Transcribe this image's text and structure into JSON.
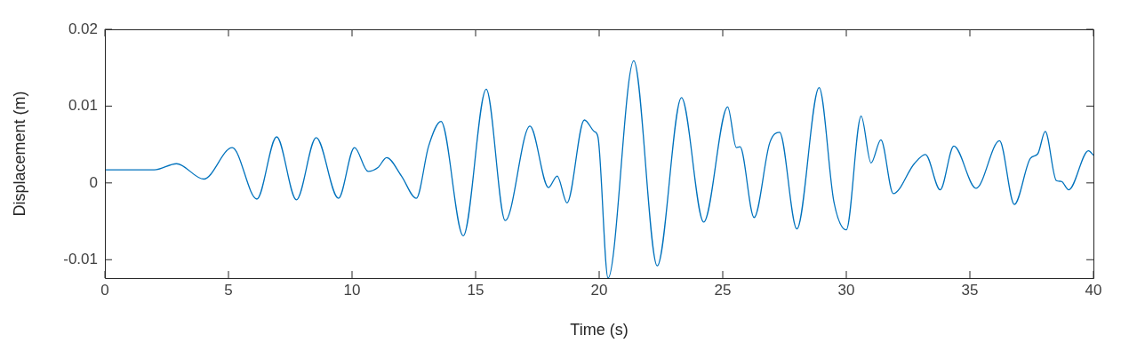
{
  "chart_data": {
    "type": "line",
    "xlabel": "Time (s)",
    "ylabel": "Displacement (m)",
    "xlim": [
      0,
      40
    ],
    "xticks": [
      0,
      5,
      10,
      15,
      20,
      25,
      30,
      35,
      40
    ],
    "ylim": [
      -0.0124,
      0.02
    ],
    "yticks": [
      -0.01,
      0,
      0.01,
      0.02
    ],
    "grid": false,
    "legend": false,
    "marker": "none",
    "line_style": "solid",
    "series": [
      {
        "color": "#0072bd",
        "x": [
          0,
          2.0,
          2.9,
          4.0,
          5.15,
          6.15,
          6.95,
          7.75,
          8.55,
          9.45,
          10.1,
          10.65,
          11.05,
          11.4,
          12.0,
          12.6,
          13.1,
          13.6,
          14.5,
          15.43,
          16.2,
          17.2,
          17.95,
          18.3,
          18.7,
          19.4,
          19.8,
          19.95,
          20.36,
          21.4,
          22.35,
          23.33,
          24.23,
          25.2,
          25.55,
          25.7,
          26.27,
          26.9,
          27.3,
          28.0,
          28.9,
          29.5,
          30.0,
          30.6,
          31.0,
          31.4,
          31.9,
          32.75,
          33.2,
          33.8,
          34.35,
          35.25,
          36.2,
          36.8,
          37.45,
          37.75,
          38.05,
          38.5,
          38.7,
          39.0,
          39.8,
          40
        ],
        "values": [
          0.0017,
          0.0017,
          0.0025,
          0.0005,
          0.0046,
          -0.0021,
          0.006,
          -0.0022,
          0.0059,
          -0.002,
          0.0046,
          0.0015,
          0.002,
          0.0033,
          0.0009,
          -0.002,
          0.0048,
          0.008,
          -0.0069,
          0.0122,
          -0.0049,
          0.0074,
          -0.0006,
          0.0009,
          -0.0026,
          0.0082,
          0.0067,
          0.006,
          -0.0124,
          0.0159,
          -0.0108,
          0.0111,
          -0.0051,
          0.0099,
          0.0046,
          0.0047,
          -0.0045,
          0.0052,
          0.0066,
          -0.006,
          0.0124,
          -0.0025,
          -0.0061,
          0.0087,
          0.0026,
          0.0056,
          -0.0014,
          0.0025,
          0.0037,
          -0.0009,
          0.0048,
          -0.0007,
          0.0055,
          -0.0028,
          0.0032,
          0.0038,
          0.0067,
          0.0003,
          0.0002,
          -0.0009,
          0.0042,
          0.0036
        ]
      }
    ]
  }
}
